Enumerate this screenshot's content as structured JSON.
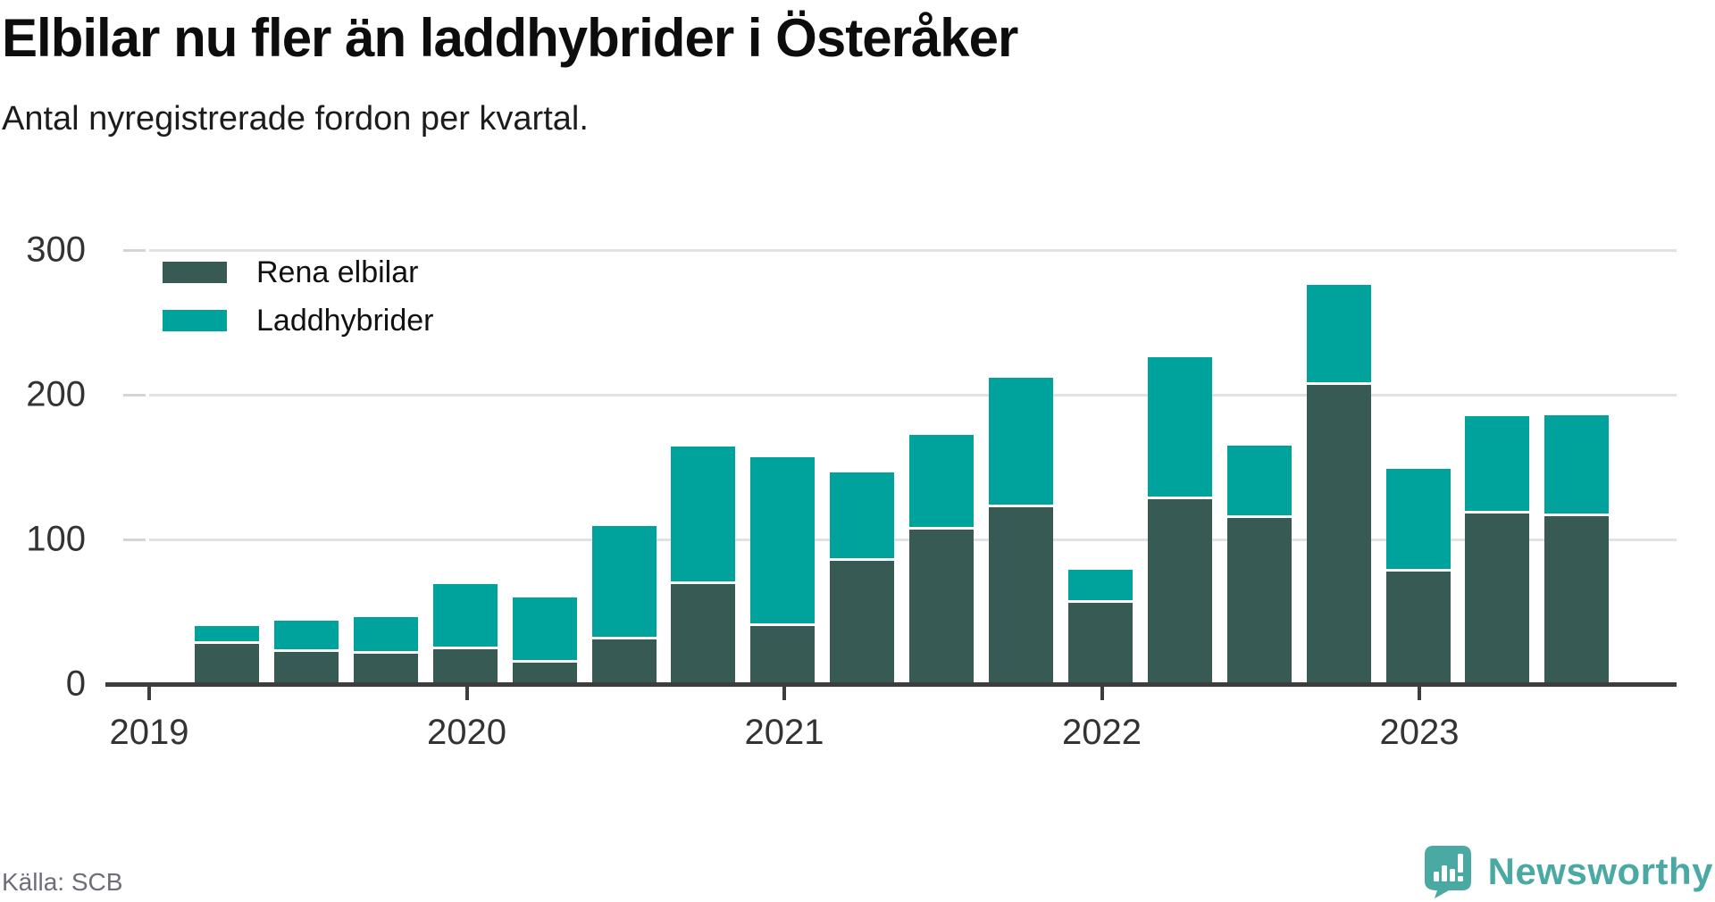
{
  "header": {
    "title": "Elbilar nu fler än laddhybrider i Österåker",
    "subtitle": "Antal nyregistrerade fordon per kvartal."
  },
  "legend": [
    {
      "label": "Rena elbilar",
      "color": "#375a54"
    },
    {
      "label": "Laddhybrider",
      "color": "#00a39c"
    }
  ],
  "y_axis": {
    "ticks": [
      300,
      200,
      100,
      0
    ]
  },
  "x_axis": {
    "years": [
      "2019",
      "2020",
      "2021",
      "2022",
      "2023"
    ]
  },
  "footer": {
    "source": "Källa: SCB",
    "brand": "Newsworthy"
  },
  "colors": {
    "elbilar": "#375a54",
    "laddhybrider": "#00a39c",
    "brand_teal": "#4aa9a2",
    "gridline": "#e2e2e2",
    "axis": "#3d3d3d"
  },
  "chart_data": {
    "type": "bar",
    "stacked": true,
    "title": "Elbilar nu fler än laddhybrider i Österåker",
    "subtitle": "Antal nyregistrerade fordon per kvartal.",
    "xlabel": "",
    "ylabel": "Antal nyregistrerade fordon per kvartal",
    "ylim": [
      0,
      300
    ],
    "grid": true,
    "legend_position": "top-left",
    "categories": [
      "2019 Q1",
      "2019 Q2",
      "2019 Q3",
      "2019 Q4",
      "2020 Q1",
      "2020 Q2",
      "2020 Q3",
      "2020 Q4",
      "2021 Q1",
      "2021 Q2",
      "2021 Q3",
      "2021 Q4",
      "2022 Q1",
      "2022 Q2",
      "2022 Q3",
      "2022 Q4",
      "2023 Q1",
      "2023 Q2"
    ],
    "series": [
      {
        "name": "Rena elbilar",
        "color": "#375a54",
        "values": [
          28,
          22,
          21,
          24,
          15,
          31,
          69,
          40,
          85,
          107,
          122,
          56,
          128,
          115,
          207,
          78,
          118,
          116
        ]
      },
      {
        "name": "Laddhybrider",
        "color": "#00a39c",
        "values": [
          12,
          22,
          25,
          45,
          45,
          78,
          95,
          117,
          61,
          65,
          90,
          23,
          98,
          50,
          69,
          71,
          67,
          70
        ]
      }
    ]
  }
}
